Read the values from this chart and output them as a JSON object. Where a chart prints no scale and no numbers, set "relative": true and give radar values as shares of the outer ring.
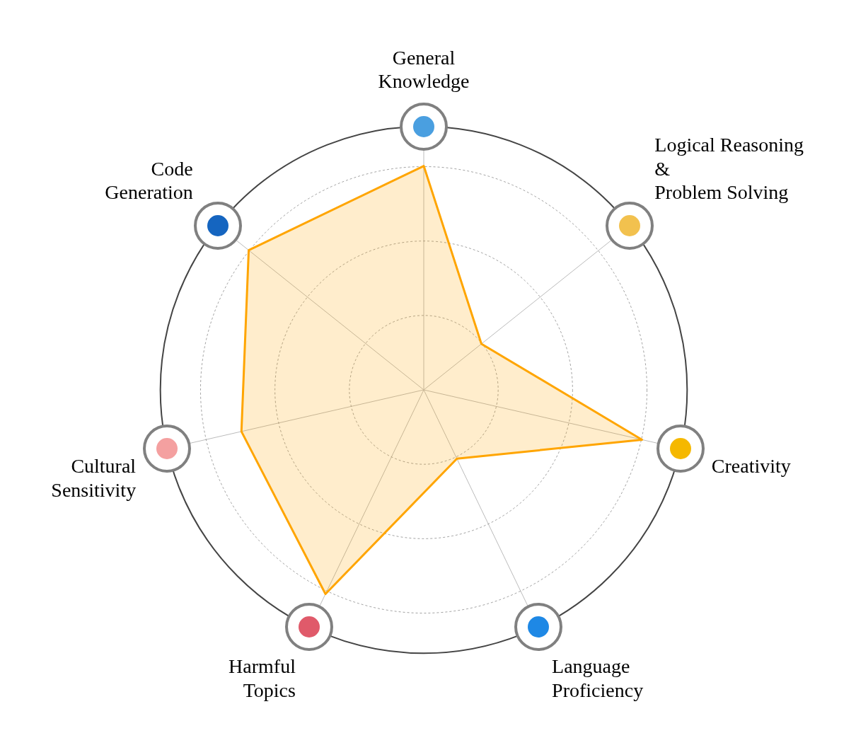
{
  "chart_data": {
    "type": "radar",
    "relative": true,
    "categories": [
      "General\nKnowledge",
      "Logical Reasoning\n&\nProblem Solving",
      "Creativity",
      "Language\nProficiency",
      "Harmful\nTopics",
      "Cultural\nSensitivity",
      "Code\nGeneration"
    ],
    "series": [
      {
        "color": "#ffa500",
        "values": [
          0.85,
          0.28,
          0.85,
          0.29,
          0.86,
          0.71,
          0.85
        ]
      }
    ],
    "grid": true,
    "legend": false,
    "marker": "none",
    "line_style": "solid"
  }
}
